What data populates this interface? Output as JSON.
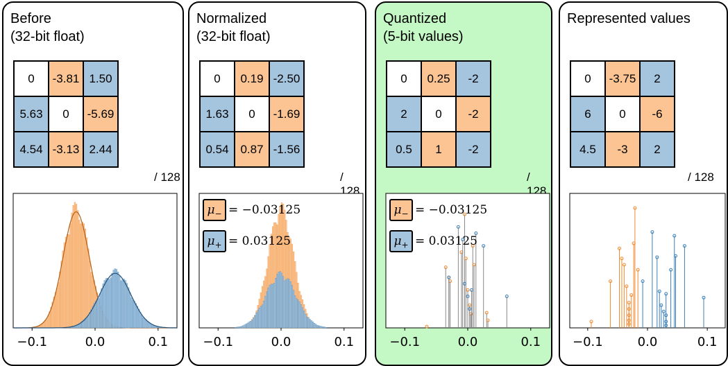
{
  "colors": {
    "orange": "#f08a30",
    "orange_light": "#fbc492",
    "blue": "#3b7fb6",
    "blue_light": "#a5c4de",
    "highlight": "#c4f8c4",
    "stem_gray": "#888888"
  },
  "panels": [
    {
      "id": "before",
      "title": "Before\n(32-bit float)",
      "matrix": [
        [
          "0",
          "-3.81",
          "1.50"
        ],
        [
          "5.63",
          "0",
          "-5.69"
        ],
        [
          "4.54",
          "-3.13",
          "2.44"
        ]
      ],
      "colors": [
        [
          "w",
          "o",
          "b"
        ],
        [
          "b",
          "w",
          "o"
        ],
        [
          "b",
          "o",
          "b"
        ]
      ],
      "scale": "/ 128",
      "highlighted": false
    },
    {
      "id": "normalized",
      "title": "Normalized\n(32-bit float)",
      "matrix": [
        [
          "0",
          "0.19",
          "-2.50"
        ],
        [
          "1.63",
          "0",
          "-1.69"
        ],
        [
          "0.54",
          "0.87",
          "-1.56"
        ]
      ],
      "colors": [
        [
          "w",
          "o",
          "b"
        ],
        [
          "b",
          "w",
          "o"
        ],
        [
          "b",
          "o",
          "b"
        ]
      ],
      "scale": "/ 128",
      "legend": {
        "minus": "= −0.03125",
        "plus": "= 0.03125"
      },
      "highlighted": false
    },
    {
      "id": "quantized",
      "title": "Quantized\n(5-bit values)",
      "matrix": [
        [
          "0",
          "0.25",
          "-2"
        ],
        [
          "2",
          "0",
          "-2"
        ],
        [
          "0.5",
          "1",
          "-2"
        ]
      ],
      "colors": [
        [
          "w",
          "o",
          "b"
        ],
        [
          "b",
          "w",
          "o"
        ],
        [
          "b",
          "o",
          "b"
        ]
      ],
      "scale": "/ 128",
      "legend": {
        "minus": "= −0.03125",
        "plus": "= 0.03125"
      },
      "highlighted": true
    },
    {
      "id": "represented",
      "title": "Represented values",
      "matrix": [
        [
          "0",
          "-3.75",
          "2"
        ],
        [
          "6",
          "0",
          "-6"
        ],
        [
          "4.5",
          "-3",
          "2"
        ]
      ],
      "colors": [
        [
          "w",
          "o",
          "b"
        ],
        [
          "b",
          "w",
          "o"
        ],
        [
          "b",
          "o",
          "b"
        ]
      ],
      "scale": "/ 128",
      "highlighted": false
    }
  ],
  "chart_data": [
    {
      "type": "histogram",
      "panel": "before",
      "xlim": [
        -0.13,
        0.13
      ],
      "xticks": [
        "−0.1",
        "0.0",
        "0.1"
      ],
      "series": [
        {
          "color": "orange",
          "mean": -0.03,
          "std": 0.021,
          "peak": 1.0
        },
        {
          "color": "blue",
          "mean": 0.032,
          "std": 0.025,
          "peak": 0.47
        }
      ],
      "fit_curves": true
    },
    {
      "type": "histogram",
      "panel": "normalized",
      "xlim": [
        -0.13,
        0.13
      ],
      "xticks": [
        "−0.1",
        "0.0",
        "0.1"
      ],
      "series": [
        {
          "color": "orange",
          "mean": 0.0,
          "std": 0.02,
          "peak": 1.0
        },
        {
          "color": "blue",
          "mean": 0.0,
          "std": 0.024,
          "peak": 0.45
        }
      ],
      "fit_curves": false
    },
    {
      "type": "stem",
      "panel": "quantized",
      "xlim": [
        -0.13,
        0.13
      ],
      "ylim": [
        0,
        1
      ],
      "xticks": [
        "−0.1",
        "0.0",
        "0.1"
      ],
      "series": [
        {
          "color": "orange",
          "points": [
            [
              -0.065,
              0.01
            ],
            [
              -0.035,
              0.48
            ],
            [
              -0.03,
              0.4
            ],
            [
              -0.028,
              0.37
            ],
            [
              -0.01,
              0.6
            ],
            [
              -0.005,
              0.9
            ],
            [
              -0.003,
              0.55
            ],
            [
              0,
              0.3
            ],
            [
              0.003,
              0.18
            ],
            [
              0.005,
              0.11
            ],
            [
              0.008,
              0.65
            ],
            [
              0.01,
              0.5
            ],
            [
              0.03,
              0.12
            ],
            [
              0.032,
              0.06
            ]
          ]
        },
        {
          "color": "blue",
          "points": [
            [
              -0.03,
              0.4
            ],
            [
              -0.015,
              0.8
            ],
            [
              -0.008,
              0.7
            ],
            [
              -0.005,
              0.35
            ],
            [
              0,
              0.25
            ],
            [
              0.003,
              0.15
            ],
            [
              0.006,
              0.3
            ],
            [
              0.013,
              0.75
            ],
            [
              0.025,
              0.65
            ],
            [
              0.062,
              0.25
            ]
          ]
        }
      ]
    },
    {
      "type": "stem",
      "panel": "represented",
      "xlim": [
        -0.13,
        0.13
      ],
      "ylim": [
        0,
        1
      ],
      "xticks": [
        "−0.1",
        "0.0",
        "0.1"
      ],
      "series": [
        {
          "color": "orange",
          "points": [
            [
              -0.094,
              0.05
            ],
            [
              -0.062,
              0.37
            ],
            [
              -0.047,
              0.63
            ],
            [
              -0.043,
              0.55
            ],
            [
              -0.039,
              0.5
            ],
            [
              -0.035,
              0.33
            ],
            [
              -0.031,
              0.2
            ],
            [
              -0.031,
              0.15
            ],
            [
              -0.031,
              0.1
            ],
            [
              -0.031,
              0.06
            ],
            [
              -0.031,
              0.03
            ],
            [
              -0.027,
              0.26
            ],
            [
              -0.023,
              0.67
            ],
            [
              -0.021,
              0.95
            ],
            [
              -0.016,
              0.46
            ]
          ]
        },
        {
          "color": "blue",
          "points": [
            [
              -0.008,
              0.37
            ],
            [
              0.008,
              0.76
            ],
            [
              0.016,
              0.56
            ],
            [
              0.02,
              0.29
            ],
            [
              0.023,
              0.18
            ],
            [
              0.027,
              0.13
            ],
            [
              0.031,
              0.27
            ],
            [
              0.031,
              0.1
            ],
            [
              0.031,
              0.05
            ],
            [
              0.031,
              0.02
            ],
            [
              0.039,
              0.46
            ],
            [
              0.045,
              0.73
            ],
            [
              0.047,
              0.57
            ],
            [
              0.062,
              0.65
            ],
            [
              0.094,
              0.24
            ]
          ]
        }
      ]
    }
  ]
}
